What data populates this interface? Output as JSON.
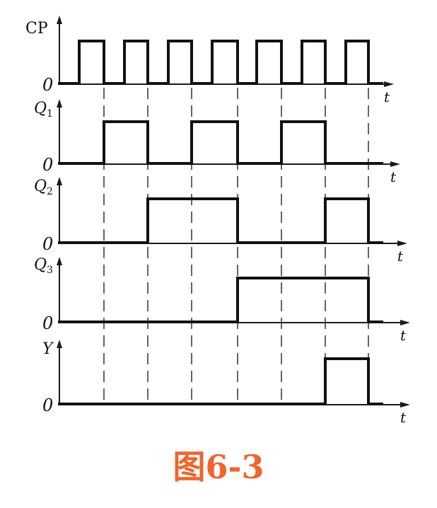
{
  "figure": {
    "caption": "图6-3",
    "zero_label": "0",
    "time_label": "t"
  },
  "signals": [
    {
      "id": "cp",
      "label": "CP",
      "sub": "",
      "levels": [
        0,
        1,
        0,
        1,
        0,
        1,
        0,
        1,
        0,
        1,
        0,
        1,
        0,
        1,
        0
      ]
    },
    {
      "id": "q1",
      "label": "Q",
      "sub": "1",
      "levels": [
        0,
        0,
        1,
        1,
        0,
        0,
        1,
        1,
        0,
        0,
        1,
        1,
        0,
        0,
        0
      ]
    },
    {
      "id": "q2",
      "label": "Q",
      "sub": "2",
      "levels": [
        0,
        0,
        0,
        0,
        1,
        1,
        1,
        1,
        0,
        0,
        0,
        0,
        1,
        1,
        0
      ]
    },
    {
      "id": "q3",
      "label": "Q",
      "sub": "3",
      "levels": [
        0,
        0,
        0,
        0,
        0,
        0,
        0,
        0,
        1,
        1,
        1,
        1,
        1,
        1,
        0
      ]
    },
    {
      "id": "y",
      "label": "Y",
      "sub": "",
      "levels": [
        0,
        0,
        0,
        0,
        0,
        0,
        0,
        0,
        0,
        0,
        0,
        0,
        1,
        1,
        0
      ]
    }
  ]
}
